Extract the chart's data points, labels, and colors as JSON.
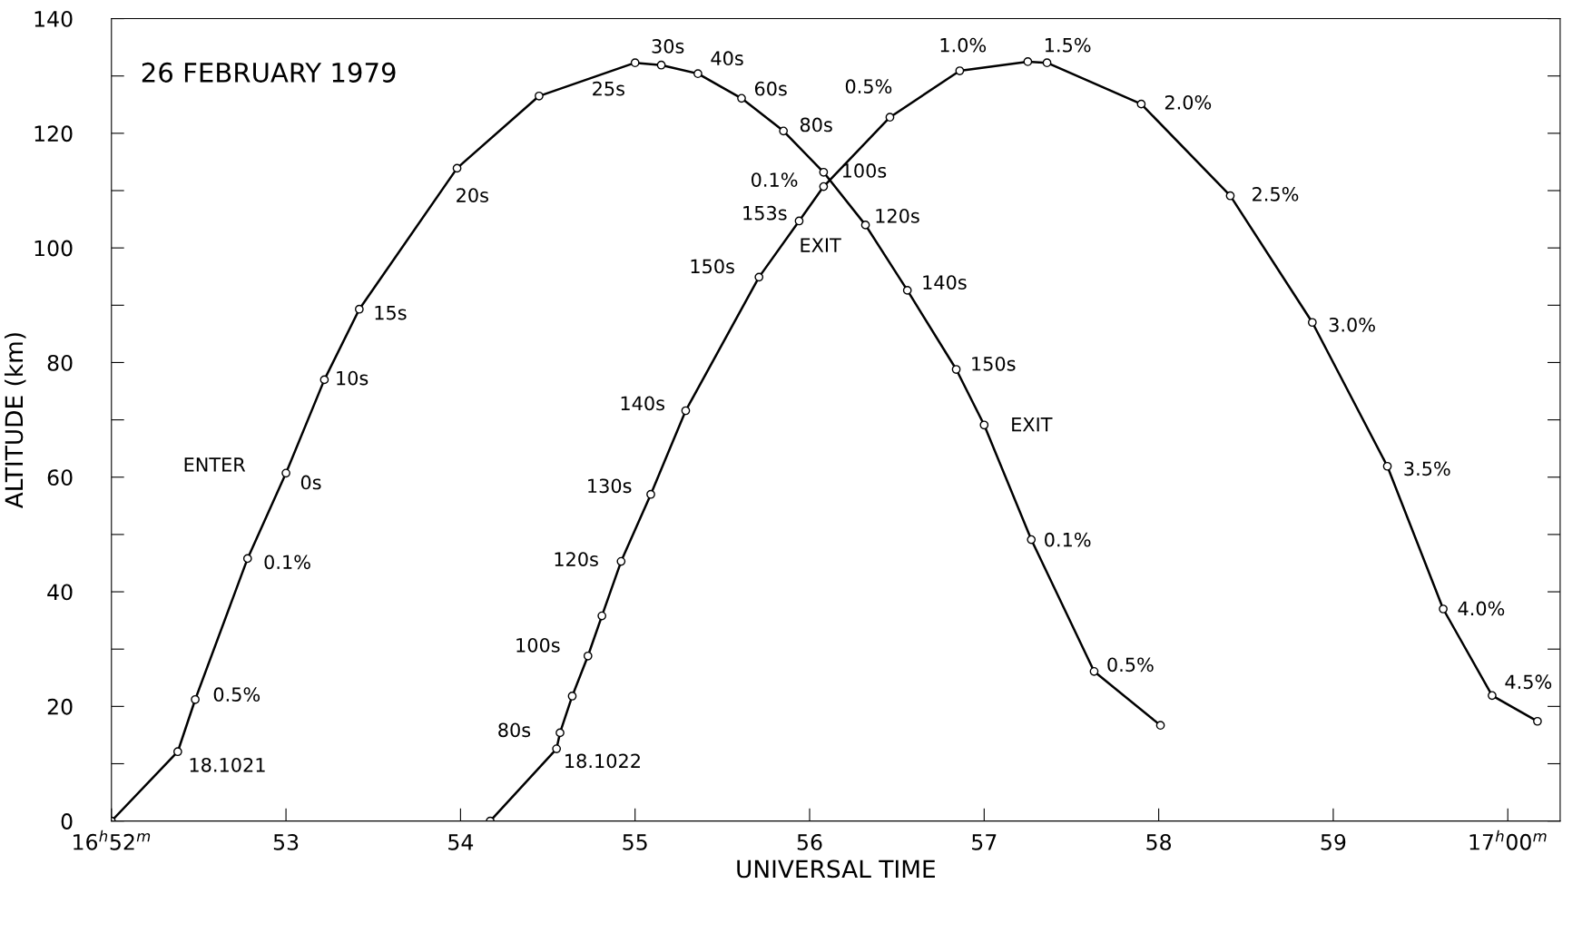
{
  "chart_data": {
    "type": "line",
    "title": "26 FEBRUARY 1979",
    "xlabel": "UNIVERSAL TIME",
    "ylabel": "ALTITUDE (km)",
    "xlim": [
      52,
      60.3
    ],
    "ylim": [
      0,
      140
    ],
    "xticks": [
      {
        "value": 52,
        "label": "16$^{h}$52$^{m}$"
      },
      53,
      54,
      55,
      56,
      57,
      58,
      59,
      {
        "value": 60,
        "label": "17$^{h}$00$^{m}$"
      }
    ],
    "yticks": [
      0,
      {
        "value": 10,
        "label": null
      },
      20,
      {
        "value": 30,
        "label": null
      },
      40,
      {
        "value": 50,
        "label": null
      },
      60,
      {
        "value": 70,
        "label": null
      },
      80,
      {
        "value": 90,
        "label": null
      },
      100,
      {
        "value": 110,
        "label": null
      },
      120,
      {
        "value": 130,
        "label": null
      },
      140
    ],
    "grid": false,
    "marker": "circle",
    "line_style": "solid",
    "series": [
      {
        "color": "#000000",
        "x": [
          52.0,
          52.38,
          52.48,
          52.78,
          53.0,
          53.22,
          53.42,
          53.98,
          54.45,
          55.0,
          55.15,
          55.36,
          55.61,
          55.85,
          56.08,
          56.32,
          56.56,
          56.84,
          57.0,
          57.27,
          57.63,
          58.01
        ],
        "values": [
          0,
          12.1,
          21.2,
          45.8,
          60.7,
          77,
          89.3,
          113.9,
          126.5,
          132.3,
          131.9,
          130.4,
          126.1,
          120.4,
          113.2,
          104,
          92.6,
          78.8,
          69.1,
          49.1,
          26.1,
          16.7
        ]
      },
      {
        "color": "#000000",
        "x": [
          54.17,
          54.55,
          54.57,
          54.64,
          54.73,
          54.81,
          54.92,
          55.09,
          55.29,
          55.71,
          55.94,
          56.08,
          56.46,
          56.86,
          57.25,
          57.36,
          57.9,
          58.41,
          58.88,
          59.31,
          59.63,
          59.91,
          60.17
        ],
        "values": [
          0,
          12.6,
          15.4,
          21.8,
          28.8,
          35.8,
          45.3,
          57,
          71.6,
          94.9,
          104.7,
          110.7,
          122.8,
          130.9,
          132.5,
          132.3,
          125.1,
          109.1,
          87,
          61.9,
          37,
          21.9,
          17.4
        ]
      }
    ],
    "annotations": [
      {
        "text": "30s",
        "x": 55.15,
        "y": 131.9
      },
      {
        "text": "25s",
        "x": 55.0,
        "y": 132.3
      },
      {
        "text": "40s",
        "x": 55.36,
        "y": 130.4
      },
      {
        "text": "60s",
        "x": 55.61,
        "y": 126.1
      },
      {
        "text": "80s",
        "x": 55.85,
        "y": 120.4
      },
      {
        "text": "100s",
        "x": 56.08,
        "y": 113.2
      },
      {
        "text": "0.1%",
        "x": 56.08,
        "y": 110.7
      },
      {
        "text": "153s",
        "x": 55.94,
        "y": 104.7
      },
      {
        "text": "EXIT",
        "x": 55.94,
        "y": 104.7
      },
      {
        "text": "120s",
        "x": 56.32,
        "y": 104
      },
      {
        "text": "150s",
        "x": 55.71,
        "y": 94.9
      },
      {
        "text": "140s",
        "x": 56.56,
        "y": 92.6
      },
      {
        "text": "150s",
        "x": 56.84,
        "y": 78.8
      },
      {
        "text": "EXIT",
        "x": 57.0,
        "y": 69.1
      },
      {
        "text": "0.1%",
        "x": 57.27,
        "y": 49.1
      },
      {
        "text": "0.5%",
        "x": 57.63,
        "y": 26.1
      },
      {
        "text": "140s",
        "x": 55.29,
        "y": 71.6
      },
      {
        "text": "130s",
        "x": 55.09,
        "y": 57
      },
      {
        "text": "120s",
        "x": 54.92,
        "y": 45.3
      },
      {
        "text": "100s",
        "x": 54.73,
        "y": 28.8
      },
      {
        "text": "80s",
        "x": 54.57,
        "y": 15.4
      },
      {
        "text": "18.1022",
        "x": 54.55,
        "y": 12.6
      },
      {
        "text": "18.1021",
        "x": 52.38,
        "y": 12.1
      },
      {
        "text": "0.5%",
        "x": 52.48,
        "y": 21.2
      },
      {
        "text": "0.1%",
        "x": 52.78,
        "y": 45.8
      },
      {
        "text": "ENTER",
        "x": 53.0,
        "y": 60.7
      },
      {
        "text": "0s",
        "x": 53.0,
        "y": 60.7
      },
      {
        "text": "10s",
        "x": 53.22,
        "y": 77
      },
      {
        "text": "15s",
        "x": 53.42,
        "y": 89.3
      },
      {
        "text": "20s",
        "x": 53.98,
        "y": 113.9
      },
      {
        "text": "0.5%",
        "x": 56.46,
        "y": 122.8
      },
      {
        "text": "1.0%",
        "x": 56.86,
        "y": 130.9
      },
      {
        "text": "1.5%",
        "x": 57.36,
        "y": 132.3
      },
      {
        "text": "2.0%",
        "x": 57.9,
        "y": 125.1
      },
      {
        "text": "2.5%",
        "x": 58.41,
        "y": 109.1
      },
      {
        "text": "3.0%",
        "x": 58.88,
        "y": 87
      },
      {
        "text": "3.5%",
        "x": 59.31,
        "y": 61.9
      },
      {
        "text": "4.0%",
        "x": 59.63,
        "y": 37
      },
      {
        "text": "4.5%",
        "x": 59.91,
        "y": 21.9
      }
    ]
  }
}
